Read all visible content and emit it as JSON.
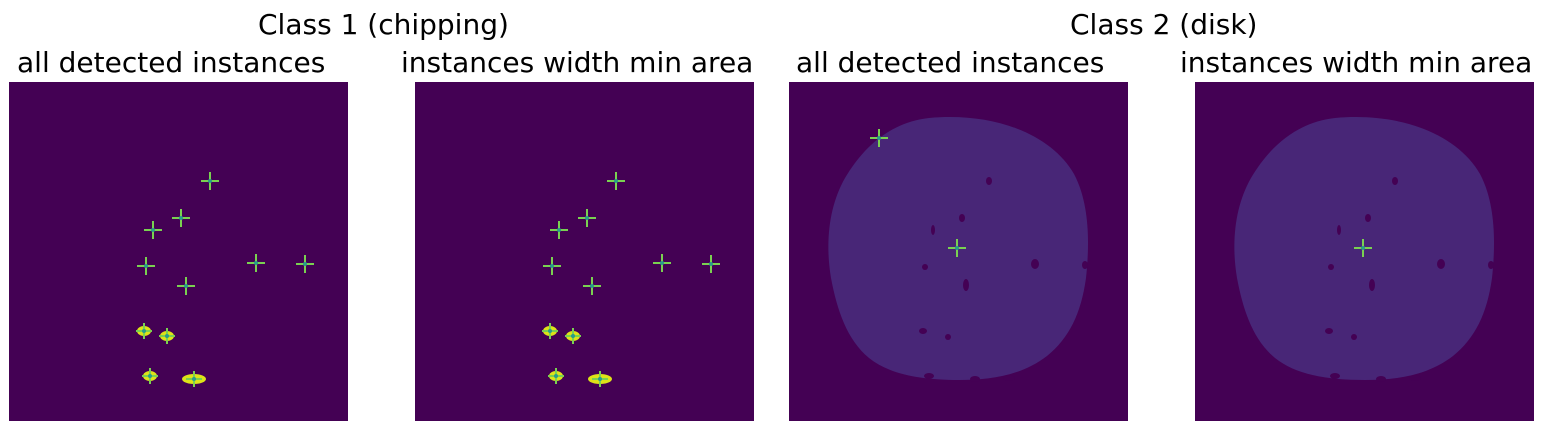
{
  "figure": {
    "colors": {
      "background": "#440154",
      "disk": "#482677",
      "hole": "#440154",
      "marker": "#7ad151",
      "marker_core": "#2a9c8a",
      "blob": "#dde318"
    },
    "groups": [
      {
        "title": "Class 1 (chipping)",
        "panels": [
          {
            "subtitle": "all detected instances",
            "type": "chipping"
          },
          {
            "subtitle": "instances width min area",
            "type": "chipping"
          }
        ]
      },
      {
        "title": "Class 2 (disk)",
        "panels": [
          {
            "subtitle": "all detected instances",
            "type": "disk",
            "extra_marker": true
          },
          {
            "subtitle": "instances width min area",
            "type": "disk",
            "extra_marker": false
          }
        ]
      }
    ]
  }
}
